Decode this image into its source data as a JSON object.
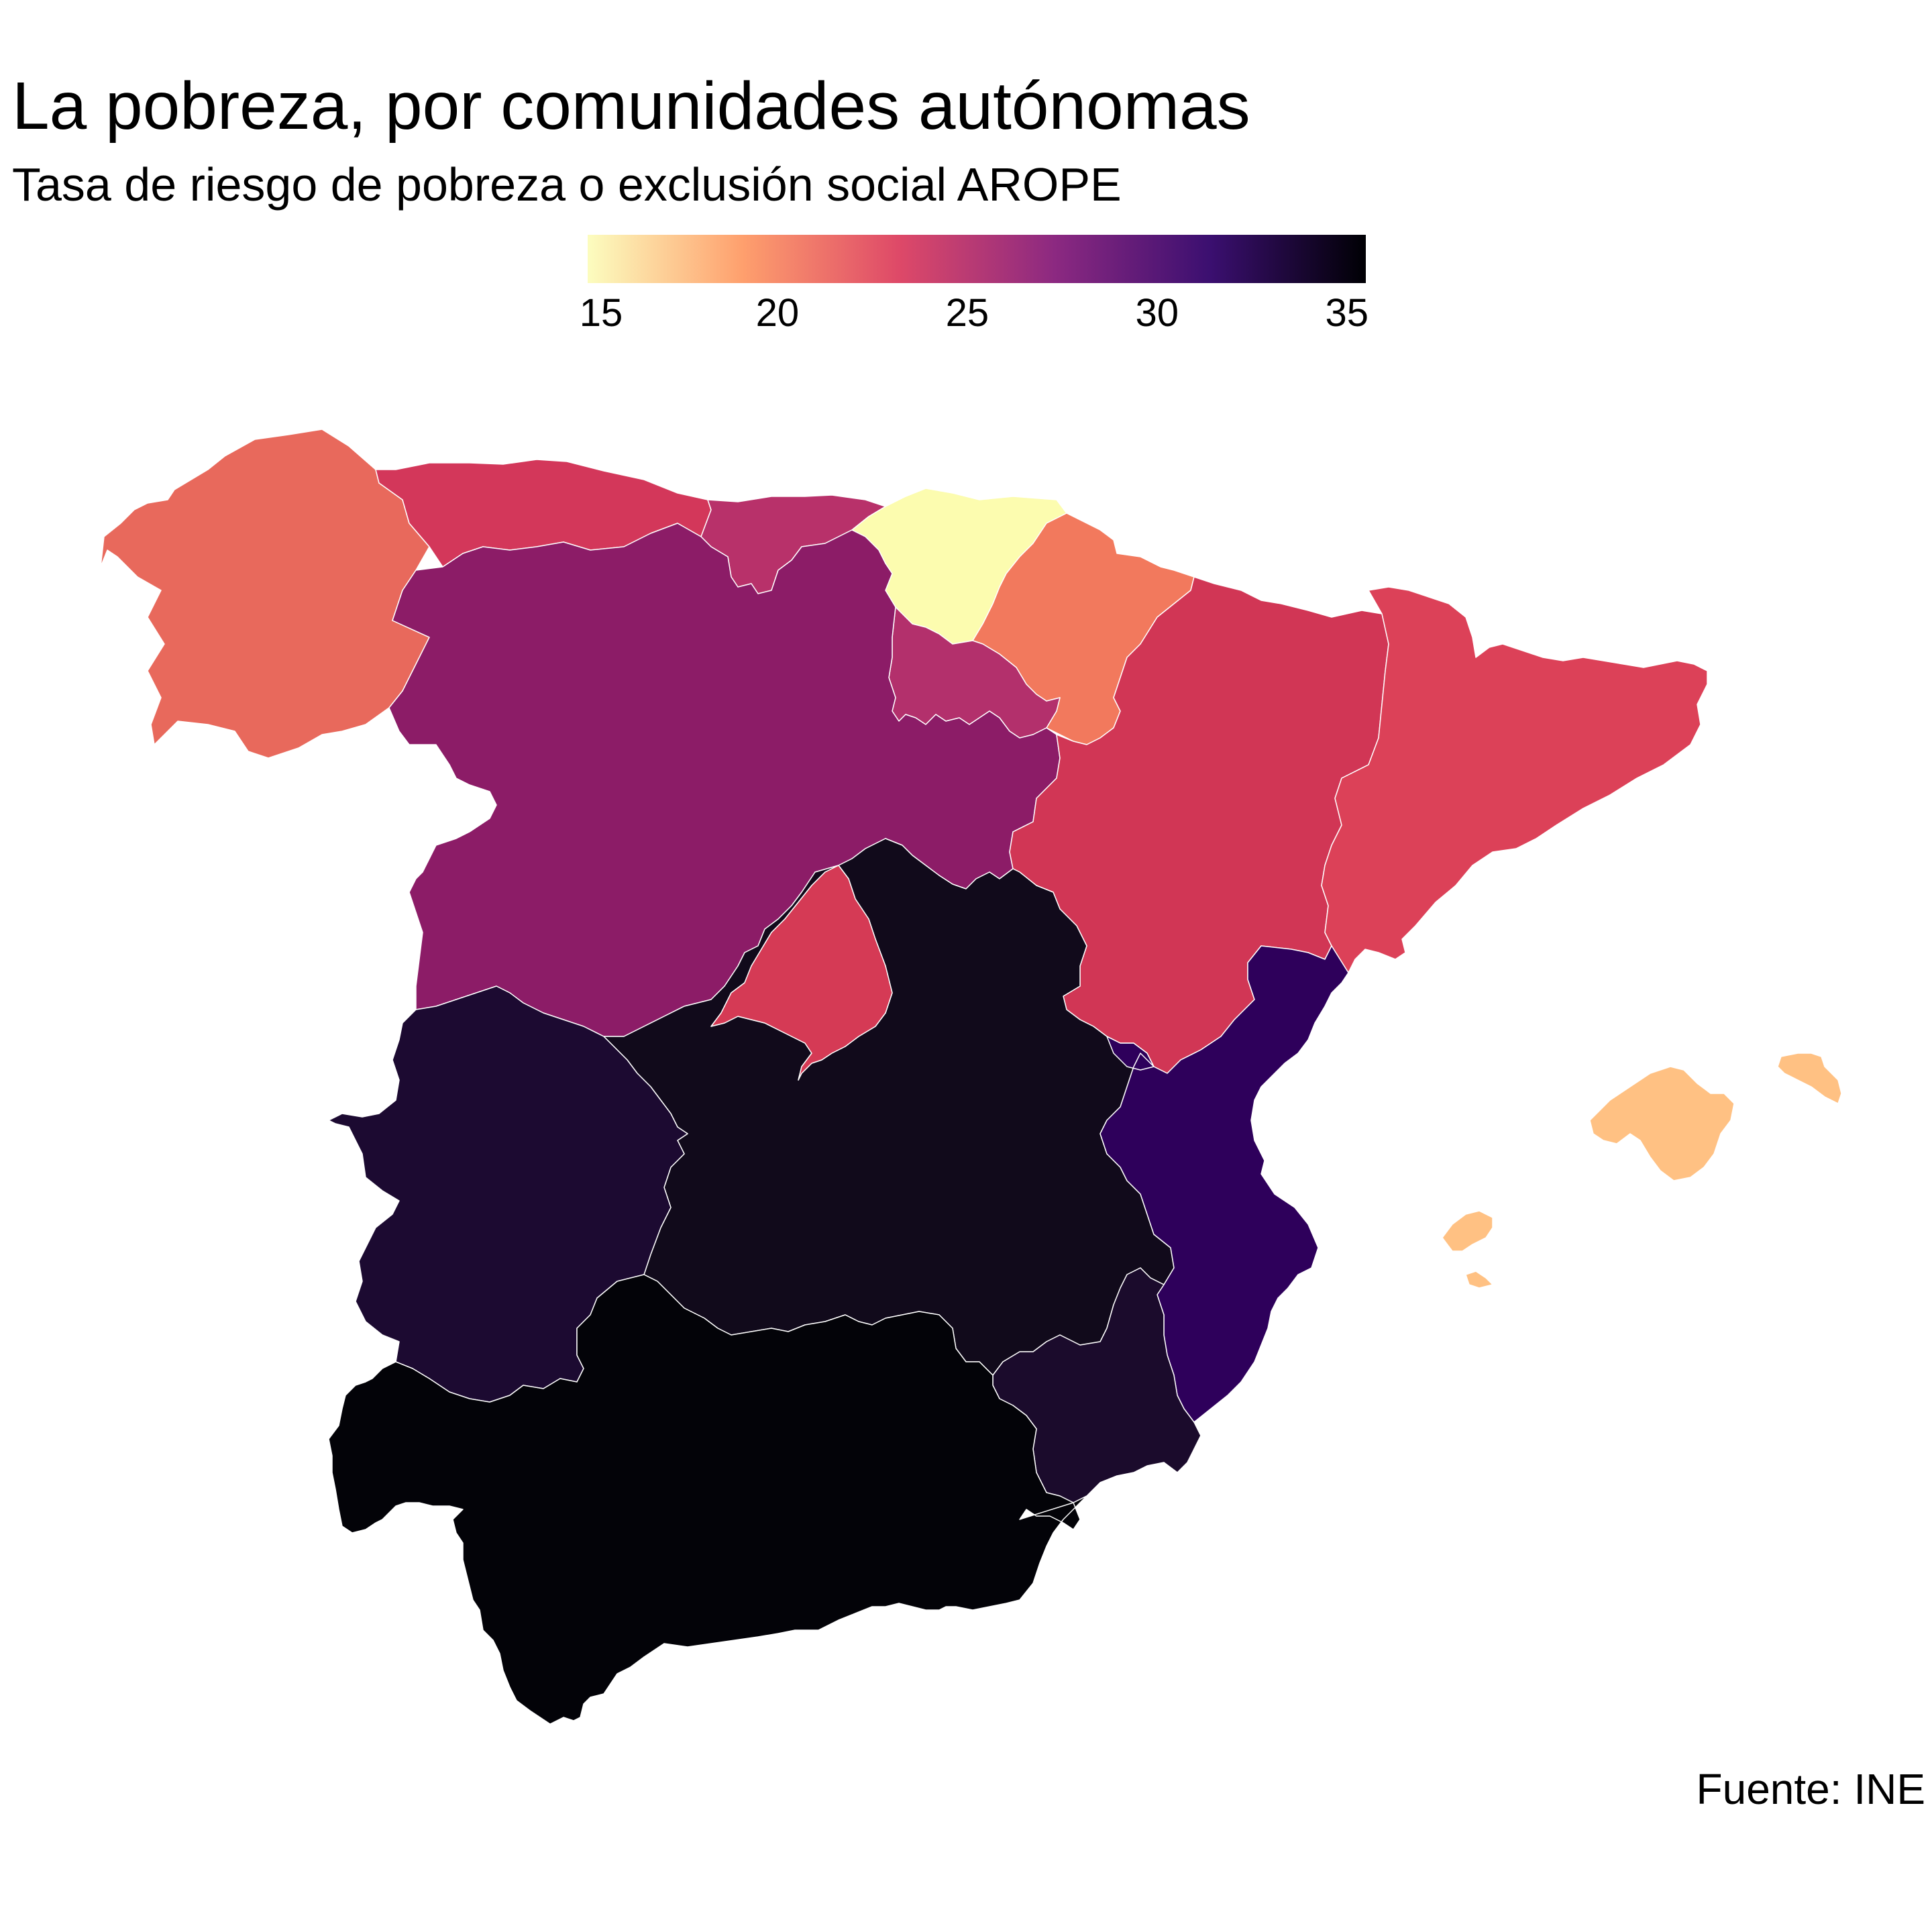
{
  "title": "La pobreza, por comunidades autónomas",
  "subtitle": "Tasa de riesgo de pobreza o exclusión social AROPE",
  "caption": "Fuente: INE",
  "legend": {
    "min": 15,
    "max": 35.5,
    "ticks": [
      "15",
      "20",
      "25",
      "30",
      "35"
    ],
    "colors": [
      "#fcfdbf",
      "#fe9f6d",
      "#de4968",
      "#8c2981",
      "#3b0f70",
      "#000004"
    ]
  },
  "chart_data": {
    "type": "choropleth",
    "palette": "magma (reversed)",
    "regions": [
      {
        "name": "Galicia",
        "value": 19.5,
        "color": "#e8695c"
      },
      {
        "name": "Asturias",
        "value": 22.0,
        "color": "#d3375a"
      },
      {
        "name": "Cantabria",
        "value": 23.0,
        "color": "#b8316a"
      },
      {
        "name": "País Vasco",
        "value": 15.0,
        "color": "#fcfcaf"
      },
      {
        "name": "Navarra",
        "value": 18.5,
        "color": "#f2795d"
      },
      {
        "name": "La Rioja",
        "value": 23.5,
        "color": "#b3306c"
      },
      {
        "name": "Castilla y León",
        "value": 25.0,
        "color": "#8c1c67"
      },
      {
        "name": "Aragón",
        "value": 21.5,
        "color": "#d13655"
      },
      {
        "name": "Cataluña",
        "value": 21.0,
        "color": "#dc4158"
      },
      {
        "name": "Comunidad de Madrid",
        "value": 21.5,
        "color": "#d53a55"
      },
      {
        "name": "Castilla-La Mancha",
        "value": 33.0,
        "color": "#110a1b"
      },
      {
        "name": "Extremadura",
        "value": 32.0,
        "color": "#1c0a31"
      },
      {
        "name": "Comunitat Valenciana",
        "value": 30.0,
        "color": "#2e005b"
      },
      {
        "name": "Región de Murcia",
        "value": 32.0,
        "color": "#1b0b2c"
      },
      {
        "name": "Andalucía",
        "value": 35.5,
        "color": "#030308"
      },
      {
        "name": "Illes Balears",
        "value": 16.5,
        "color": "#ffc183"
      }
    ]
  }
}
